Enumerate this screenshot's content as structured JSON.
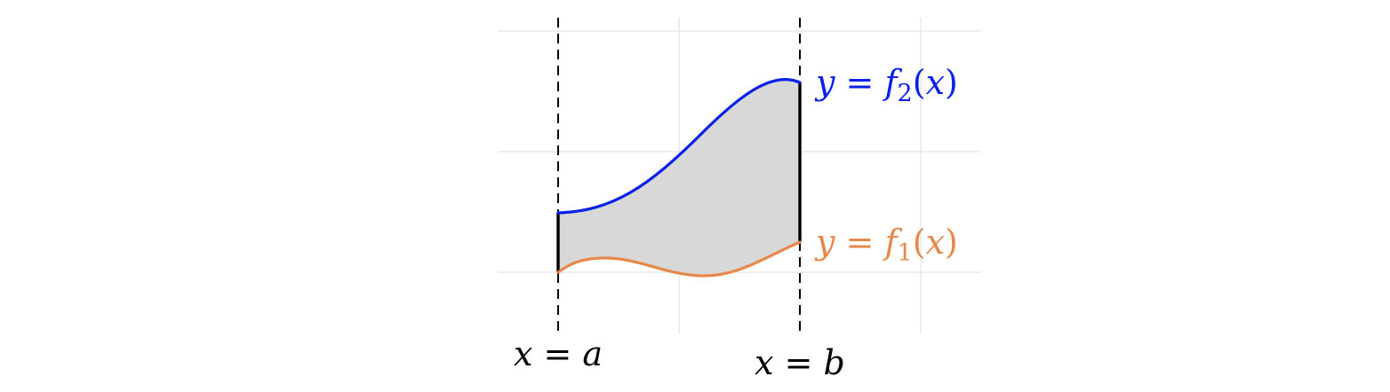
{
  "colors": {
    "f1": "#e8874a",
    "f2": "#0a21e8",
    "fill": "#d8d8d8",
    "boundary": "#000000",
    "grid": "#dddddd"
  },
  "labels": {
    "f2": {
      "y": "y",
      "eq": " = ",
      "f": "f",
      "sub": "2",
      "open": "(",
      "x": "x",
      "close": ")"
    },
    "f1": {
      "y": "y",
      "eq": " = ",
      "f": "f",
      "sub": "1",
      "open": "(",
      "x": "x",
      "close": ")"
    },
    "a": {
      "x": "x",
      "eq": " = ",
      "v": "a"
    },
    "b": {
      "x": "x",
      "eq": " = ",
      "v": "b"
    }
  }
}
